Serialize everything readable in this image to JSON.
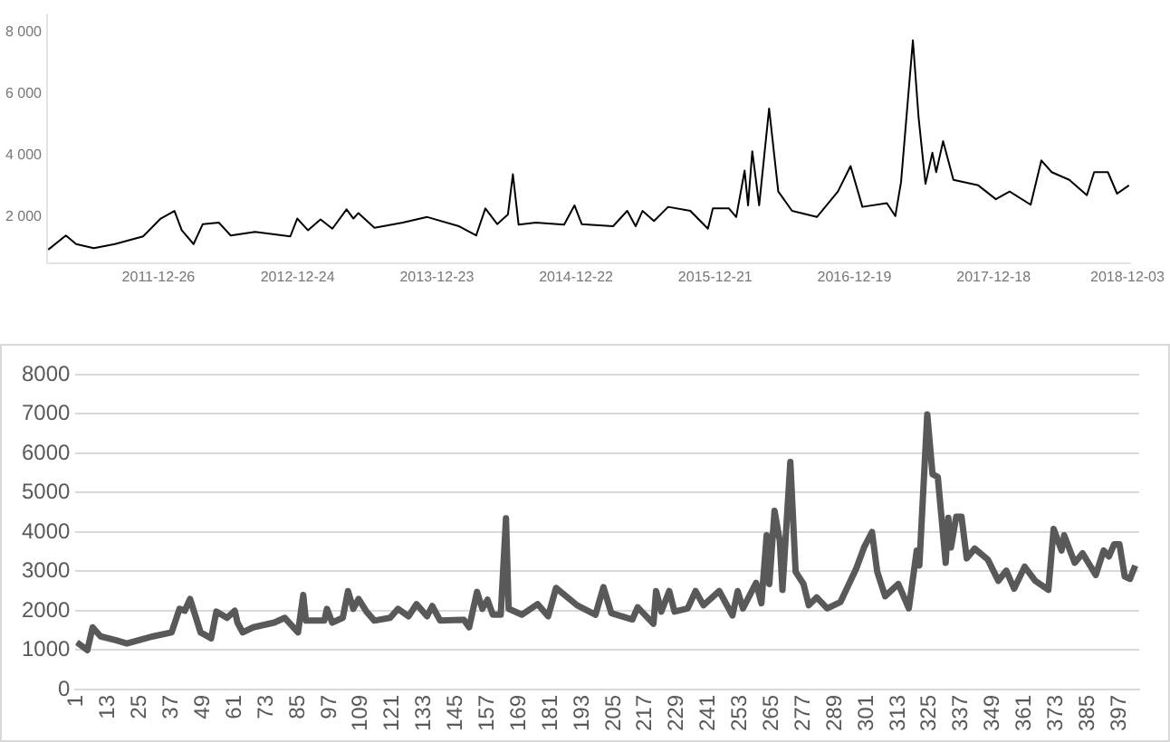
{
  "chart_data": [
    {
      "type": "line",
      "color": "#000000",
      "x": [
        "2011-03-13",
        "2011-04-28",
        "2011-05-25",
        "2011-07-10",
        "2011-09-03",
        "2011-11-16",
        "2012-01-01",
        "2012-02-06",
        "2012-02-25",
        "2012-03-27",
        "2012-04-20",
        "2012-06-01",
        "2012-07-02",
        "2012-09-04",
        "2012-12-05",
        "2012-12-23",
        "2013-01-20",
        "2013-02-22",
        "2013-03-25",
        "2013-05-01",
        "2013-05-19",
        "2013-06-01",
        "2013-07-13",
        "2013-09-25",
        "2013-11-28",
        "2014-02-19",
        "2014-04-05",
        "2014-04-29",
        "2014-05-30",
        "2014-06-27",
        "2014-07-10",
        "2014-07-25",
        "2014-09-08",
        "2014-11-21",
        "2014-12-18",
        "2015-01-06",
        "2015-03-29",
        "2015-05-05",
        "2015-05-27",
        "2015-06-14",
        "2015-07-14",
        "2015-08-20",
        "2015-10-17",
        "2015-12-02",
        "2015-12-15",
        "2016-01-26",
        "2016-02-14",
        "2016-03-07",
        "2016-03-16",
        "2016-03-27",
        "2016-04-14",
        "2016-05-10",
        "2016-06-03",
        "2016-07-09",
        "2016-09-12",
        "2016-11-06",
        "2016-12-09",
        "2017-01-09",
        "2017-03-14",
        "2017-04-05",
        "2017-04-20",
        "2017-05-21",
        "2017-06-05",
        "2017-06-23",
        "2017-07-11",
        "2017-07-21",
        "2017-08-08",
        "2017-09-04",
        "2017-11-08",
        "2017-12-24",
        "2018-01-29",
        "2018-03-25",
        "2018-04-22",
        "2018-05-19",
        "2018-07-04",
        "2018-08-19",
        "2018-09-07",
        "2018-10-13",
        "2018-11-06",
        "2018-12-07"
      ],
      "values": [
        940,
        1400,
        1120,
        990,
        1120,
        1370,
        1950,
        2200,
        1570,
        1120,
        1770,
        1820,
        1400,
        1520,
        1370,
        1950,
        1570,
        1920,
        1620,
        2250,
        1950,
        2130,
        1650,
        1820,
        2000,
        1700,
        1400,
        2280,
        1770,
        2080,
        3390,
        1750,
        1820,
        1750,
        2380,
        1770,
        1700,
        2200,
        1700,
        2200,
        1870,
        2330,
        2200,
        1620,
        2280,
        2280,
        2000,
        3510,
        2380,
        4140,
        2380,
        5530,
        2830,
        2200,
        2000,
        2830,
        3660,
        2330,
        2450,
        2030,
        3130,
        7750,
        5230,
        3080,
        4090,
        3460,
        4470,
        3210,
        3030,
        2580,
        2830,
        2400,
        3840,
        3460,
        3210,
        2710,
        3460,
        3460,
        2760,
        3030
      ],
      "xlim": [
        "2011-03-10",
        "2018-12-10"
      ],
      "xticks": [
        "2011-12-26",
        "2012-12-24",
        "2013-12-23",
        "2014-12-22",
        "2015-12-21",
        "2016-12-19",
        "2017-12-18",
        "2018-12-03"
      ],
      "ylim": [
        500,
        8600
      ],
      "yticks": [
        {
          "value": 2000,
          "label": "2 000"
        },
        {
          "value": 4000,
          "label": "4 000"
        },
        {
          "value": 6000,
          "label": "6 000"
        },
        {
          "value": 8000,
          "label": "8 000"
        }
      ],
      "grid": false,
      "legend": false
    },
    {
      "type": "line",
      "color": "#595959",
      "x": [
        1,
        5,
        7,
        10,
        16,
        20,
        30,
        37,
        40,
        42,
        44,
        48,
        52,
        54,
        58,
        61,
        62,
        64,
        68,
        76,
        80,
        85,
        87,
        88,
        95,
        96,
        98,
        102,
        104,
        106,
        108,
        111,
        114,
        120,
        123,
        127,
        130,
        134,
        136,
        139,
        148,
        150,
        153,
        155,
        157,
        159,
        162,
        164,
        165,
        170,
        176,
        180,
        183,
        191,
        198,
        201,
        204,
        212,
        214,
        220,
        221,
        223,
        226,
        228,
        233,
        236,
        239,
        245,
        250,
        252,
        254,
        259,
        261,
        263,
        264,
        266,
        268,
        269,
        272,
        274,
        277,
        279,
        282,
        286,
        291,
        297,
        300,
        303,
        305,
        308,
        313,
        317,
        320,
        321,
        324,
        326,
        328,
        331,
        332,
        333,
        335,
        337,
        339,
        342,
        347,
        351,
        354,
        357,
        361,
        365,
        370,
        372,
        375,
        376,
        380,
        383,
        388,
        391,
        393,
        395,
        397,
        399,
        401,
        403
      ],
      "values": [
        1200,
        1000,
        1580,
        1350,
        1250,
        1170,
        1350,
        1450,
        2050,
        2000,
        2300,
        1450,
        1300,
        1980,
        1820,
        2000,
        1700,
        1450,
        1580,
        1700,
        1820,
        1450,
        2400,
        1750,
        1750,
        2050,
        1700,
        1820,
        2500,
        2050,
        2300,
        1980,
        1750,
        1820,
        2050,
        1860,
        2170,
        1860,
        2120,
        1750,
        1770,
        1580,
        2480,
        2050,
        2280,
        1900,
        1900,
        4350,
        2050,
        1900,
        2170,
        1860,
        2580,
        2140,
        1900,
        2600,
        1940,
        1780,
        2090,
        1670,
        2500,
        1980,
        2500,
        1980,
        2060,
        2500,
        2140,
        2500,
        1880,
        2500,
        2060,
        2710,
        2190,
        3920,
        2680,
        4540,
        3770,
        2530,
        5780,
        2990,
        2680,
        2140,
        2340,
        2060,
        2220,
        3070,
        3610,
        4000,
        2990,
        2370,
        2680,
        2060,
        3530,
        3150,
        6990,
        5470,
        5400,
        3220,
        4360,
        3610,
        4390,
        4390,
        3330,
        3580,
        3300,
        2760,
        3020,
        2560,
        3120,
        2760,
        2530,
        4080,
        3530,
        3920,
        3220,
        3460,
        2910,
        3530,
        3380,
        3690,
        3690,
        2870,
        2810,
        3150
      ],
      "xlim": [
        0.5,
        404.5
      ],
      "xticks": [
        1,
        13,
        25,
        37,
        49,
        61,
        73,
        85,
        97,
        109,
        121,
        133,
        145,
        157,
        169,
        181,
        193,
        205,
        217,
        229,
        241,
        253,
        265,
        277,
        289,
        301,
        313,
        325,
        337,
        349,
        361,
        373,
        385,
        397
      ],
      "ylim": [
        0,
        8000
      ],
      "yticks": [
        0,
        1000,
        2000,
        3000,
        4000,
        5000,
        6000,
        7000,
        8000
      ],
      "grid": "y",
      "legend": false
    }
  ]
}
